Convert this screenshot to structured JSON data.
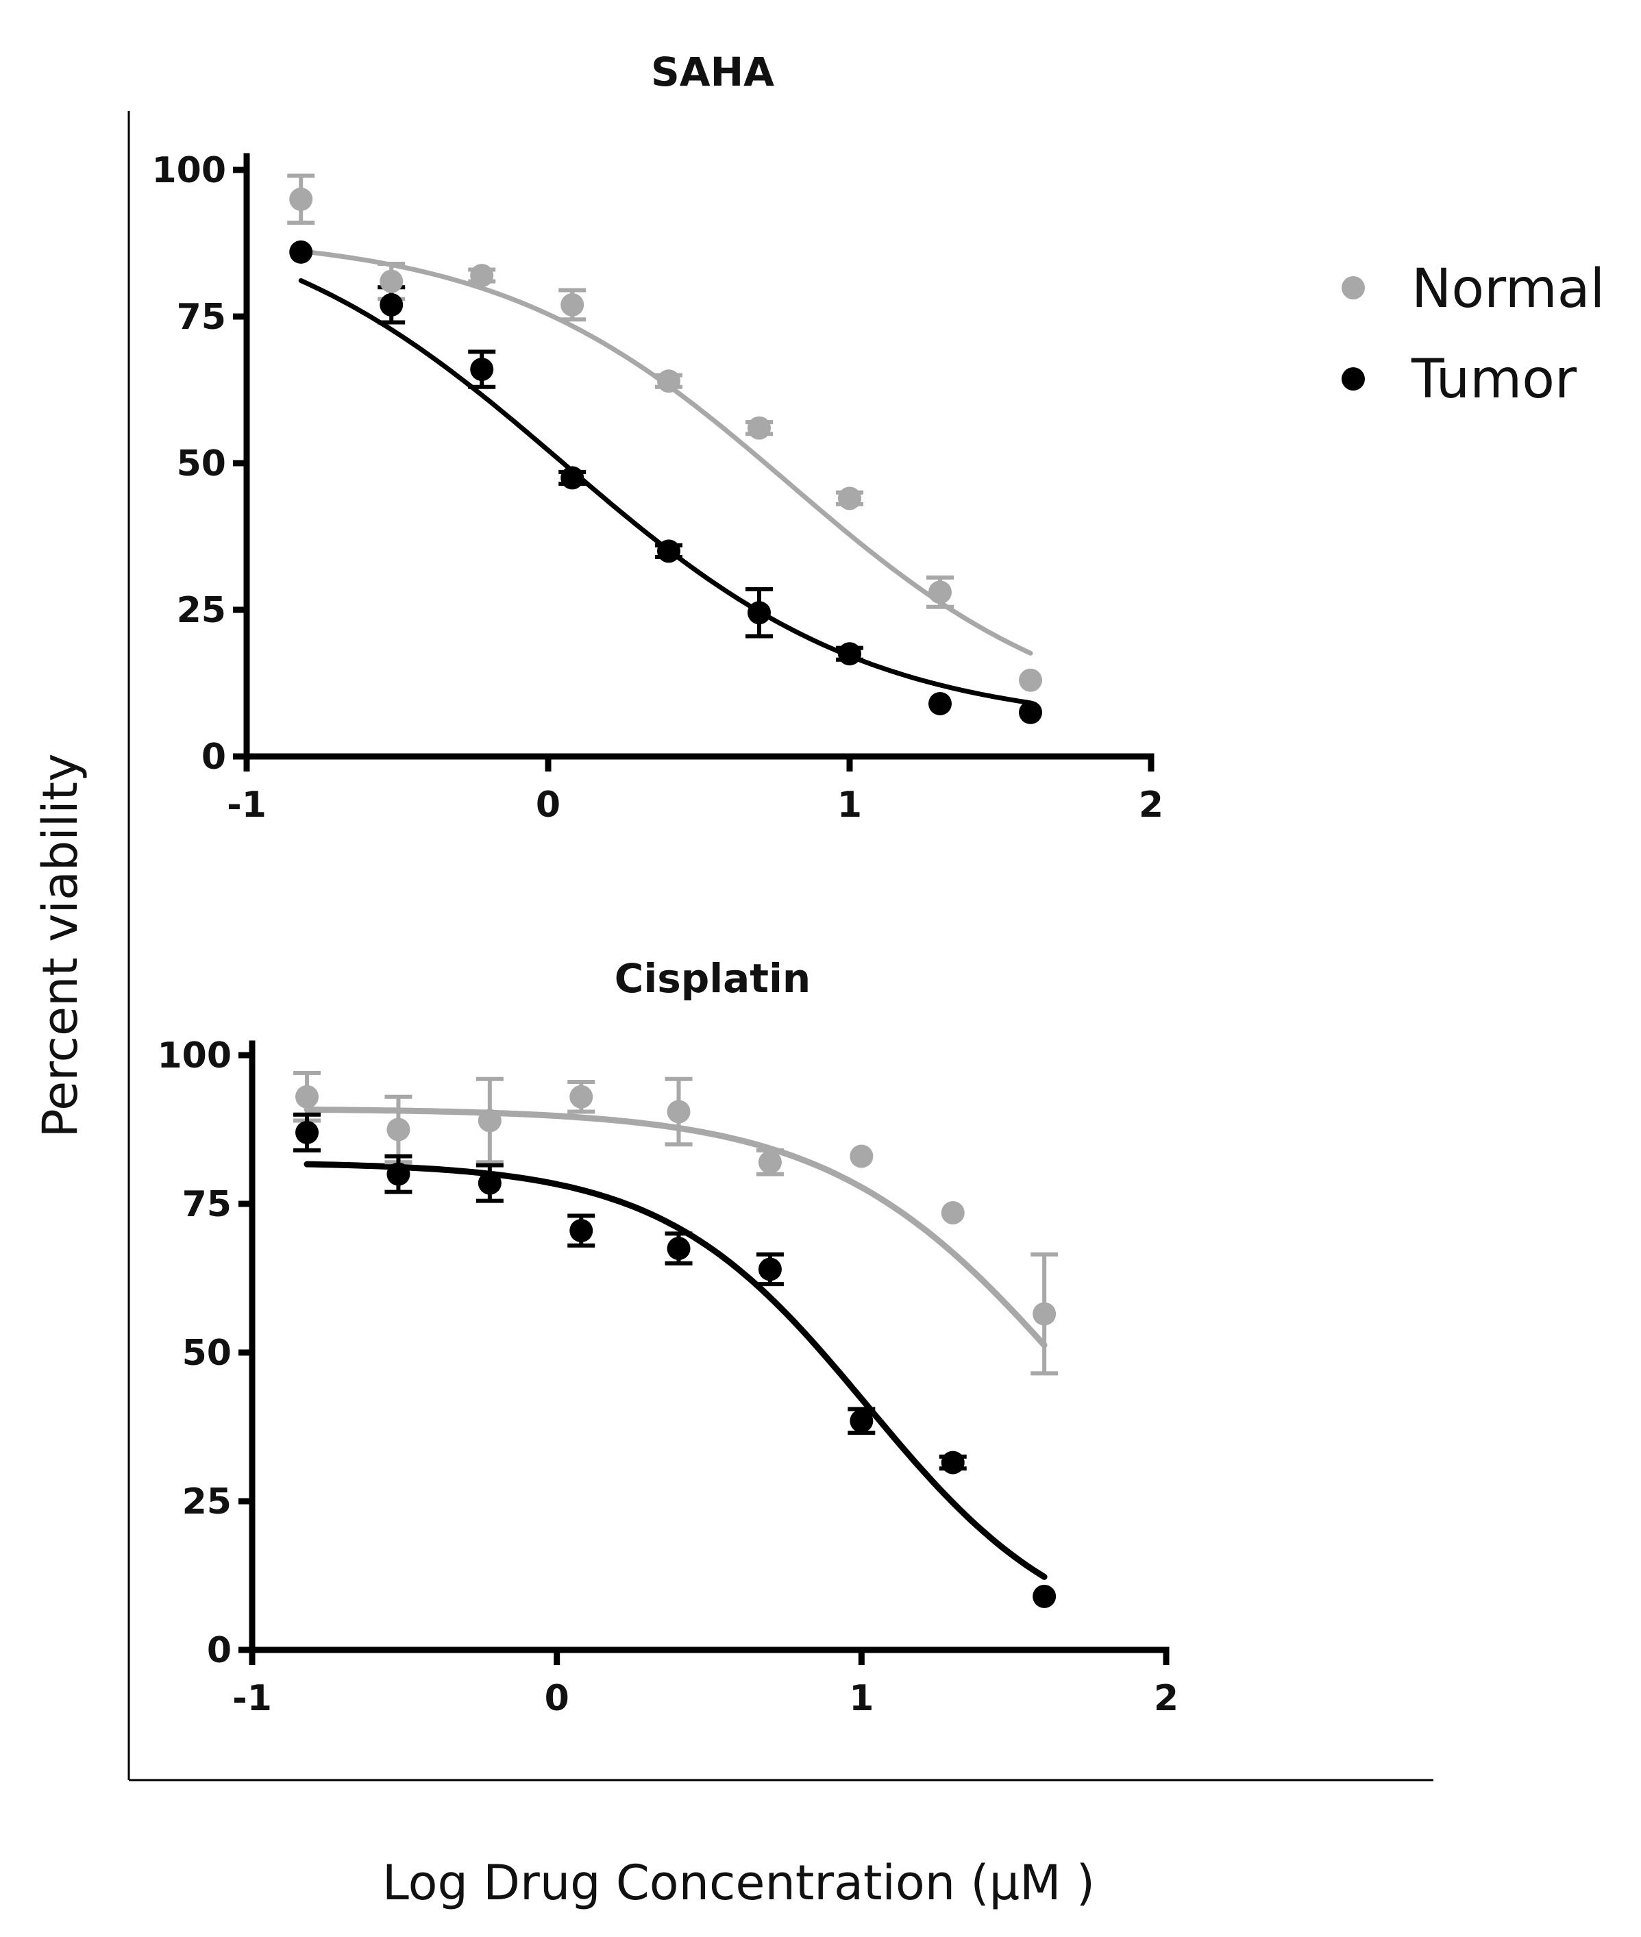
{
  "figure": {
    "ylabel": "Percent viability",
    "xlabel": "Log Drug Concentration (μM )"
  },
  "legend": {
    "placement": "right",
    "items": [
      {
        "label": "Normal",
        "color": "#a8a8a8"
      },
      {
        "label": "Tumor",
        "color": "#000000"
      }
    ]
  },
  "chart_data": [
    {
      "type": "scatter",
      "title": "SAHA",
      "xlabel": "Log Drug Concentration (μM )",
      "ylabel": "Percent viability",
      "xlim": [
        -1,
        2
      ],
      "ylim": [
        0,
        100
      ],
      "xticks": [
        "-1",
        "0",
        "1",
        "2"
      ],
      "yticks": [
        "0",
        "25",
        "50",
        "75",
        "100"
      ],
      "x": [
        -0.82,
        -0.52,
        -0.22,
        0.08,
        0.4,
        0.7,
        1.0,
        1.3,
        1.6
      ],
      "series": [
        {
          "name": "Normal",
          "color": "#a8a8a8",
          "values": [
            95,
            81,
            82,
            77,
            64,
            56,
            44,
            28,
            13
          ],
          "errors": [
            4,
            3,
            1,
            2.5,
            1,
            1,
            1,
            2.5,
            0.5
          ],
          "fit": {
            "top": 89,
            "bottom": 4,
            "logec50": 0.8,
            "hill": 0.9
          }
        },
        {
          "name": "Tumor",
          "color": "#000000",
          "values": [
            86,
            77,
            66,
            47.5,
            35,
            24.5,
            17.5,
            9,
            7.5
          ],
          "errors": [
            0.5,
            3,
            3,
            1,
            1,
            4,
            1,
            0.5,
            0.5
          ],
          "fit": {
            "top": 95,
            "bottom": 5,
            "logec50": 0.05,
            "hill": 0.85
          }
        }
      ]
    },
    {
      "type": "scatter",
      "title": "Cisplatin",
      "xlabel": "Log Drug Concentration (μM )",
      "ylabel": "Percent viability",
      "xlim": [
        -1,
        2
      ],
      "ylim": [
        0,
        100
      ],
      "xticks": [
        "-1",
        "0",
        "1",
        "2"
      ],
      "yticks": [
        "0",
        "25",
        "50",
        "75",
        "100"
      ],
      "x": [
        -0.82,
        -0.52,
        -0.22,
        0.08,
        0.4,
        0.7,
        1.0,
        1.3,
        1.6
      ],
      "series": [
        {
          "name": "Normal",
          "color": "#a8a8a8",
          "values": [
            93,
            87.5,
            89,
            93,
            90.5,
            82,
            83,
            73.5,
            56.5
          ],
          "errors": [
            4,
            5.5,
            7,
            2.5,
            5.5,
            2,
            0.5,
            0.5,
            10
          ],
          "fit": {
            "top": 91,
            "bottom": 0,
            "logec50": 1.7,
            "hill": 1.1
          }
        },
        {
          "name": "Tumor",
          "color": "#000000",
          "values": [
            87,
            80,
            78.5,
            70.5,
            67.5,
            64,
            38.5,
            31.5,
            9
          ],
          "errors": [
            3,
            3,
            3,
            2.5,
            2.5,
            2.5,
            2,
            1,
            0.5
          ],
          "fit": {
            "top": 82,
            "bottom": 0,
            "logec50": 1.02,
            "hill": 1.3
          }
        }
      ]
    }
  ]
}
